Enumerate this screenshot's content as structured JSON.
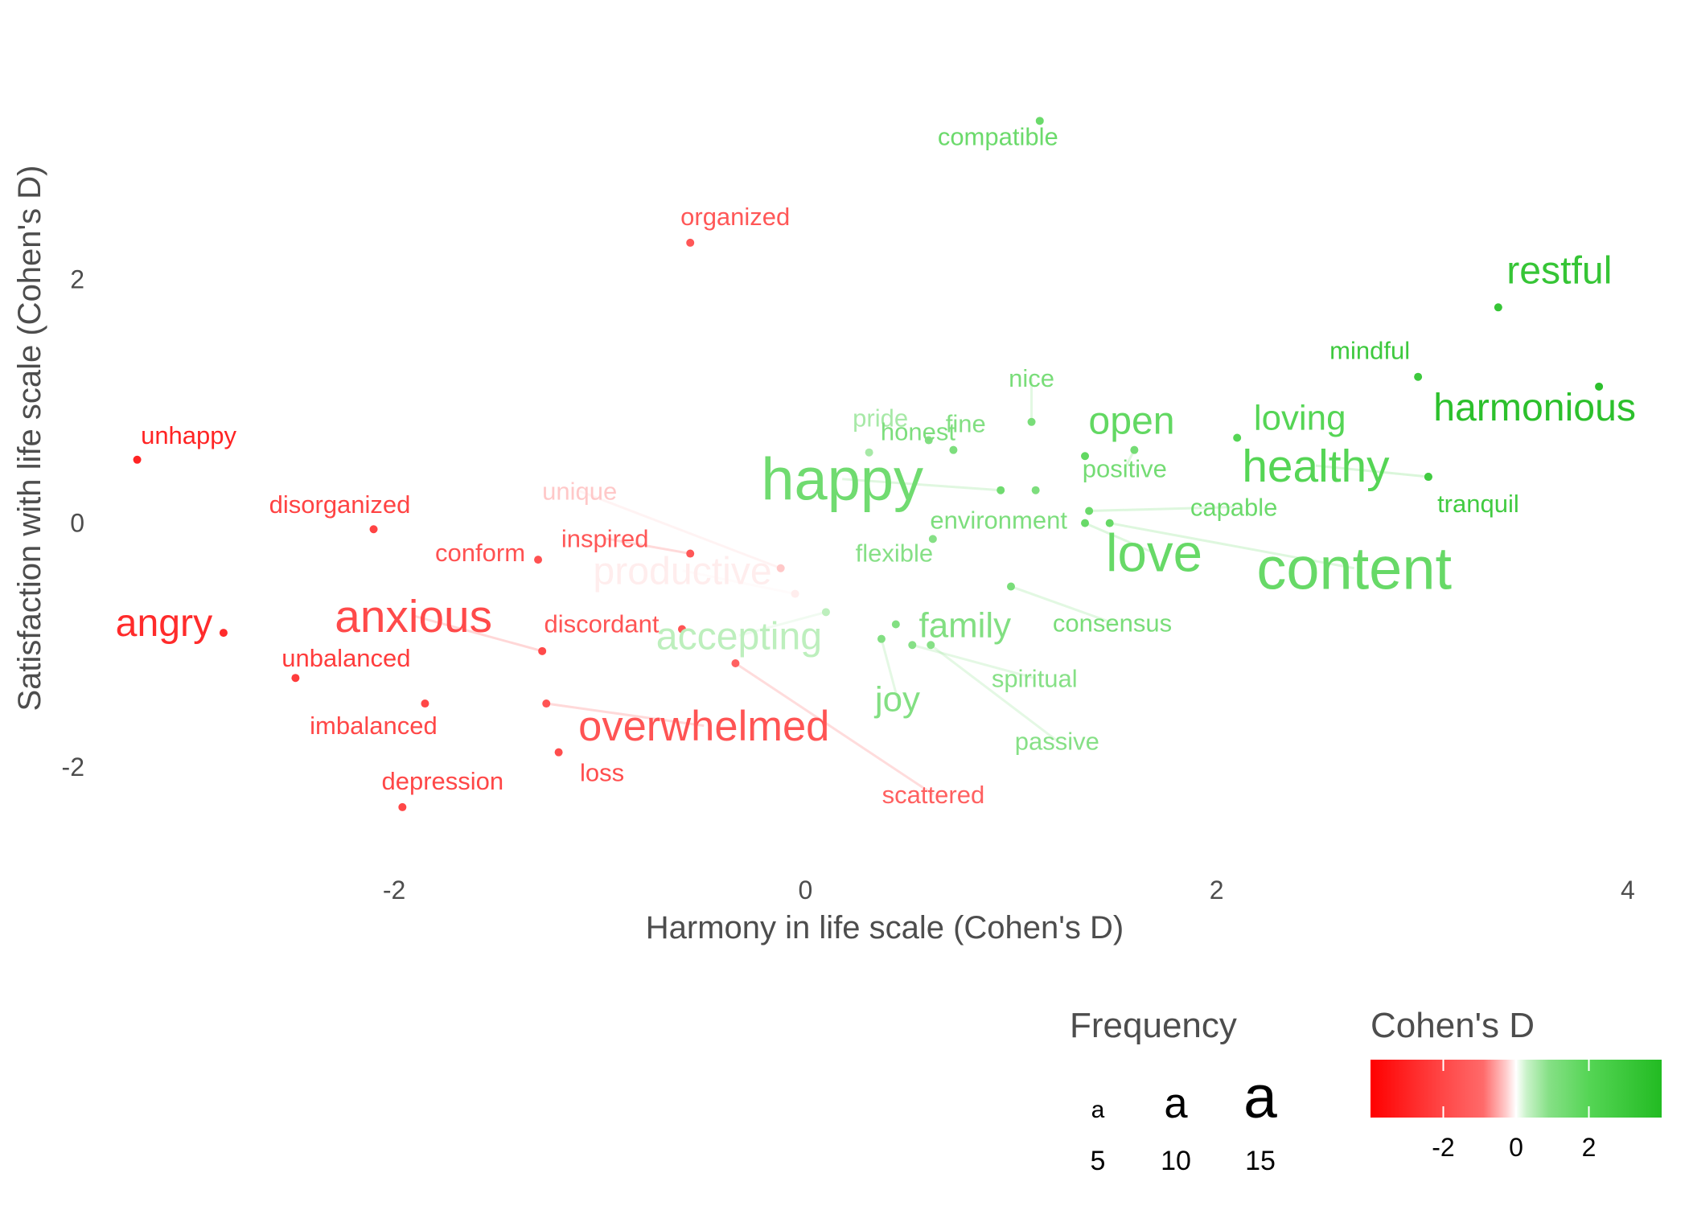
{
  "chart_data": {
    "type": "scatter",
    "xlabel": "Harmony in life scale (Cohen's D)",
    "ylabel": "Satisfaction with life scale (Cohen's D)",
    "xlim": [
      -3.35,
      4.2
    ],
    "ylim": [
      -2.7,
      3.5
    ],
    "x_ticks": [
      "-2",
      "0",
      "2",
      "4"
    ],
    "x_tick_values": [
      -2,
      0,
      2,
      4
    ],
    "y_ticks": [
      "-2",
      "0",
      "2"
    ],
    "y_tick_values": [
      -2,
      0,
      2
    ],
    "grid": false,
    "points": [
      {
        "word": "compatible",
        "x": 1.14,
        "y": 3.3,
        "freq": 5,
        "cohens_d": 1.5
      },
      {
        "word": "organized",
        "x": -0.56,
        "y": 2.3,
        "freq": 5,
        "cohens_d": -1.5
      },
      {
        "word": "restful",
        "x": 3.37,
        "y": 1.77,
        "freq": 9,
        "cohens_d": 3.2
      },
      {
        "word": "mindful",
        "x": 2.98,
        "y": 1.2,
        "freq": 5,
        "cohens_d": 2.9
      },
      {
        "word": "harmonious",
        "x": 3.86,
        "y": 1.12,
        "freq": 9,
        "cohens_d": 3.6
      },
      {
        "word": "nice",
        "x": 1.1,
        "y": 0.83,
        "freq": 5,
        "cohens_d": 1.2
      },
      {
        "word": "loving",
        "x": 2.1,
        "y": 0.7,
        "freq": 8,
        "cohens_d": 2.0
      },
      {
        "word": "open",
        "x": 1.36,
        "y": 0.55,
        "freq": 9,
        "cohens_d": 1.7
      },
      {
        "word": "pride",
        "x": 0.31,
        "y": 0.58,
        "freq": 5,
        "cohens_d": 0.6
      },
      {
        "word": "fine",
        "x": 0.6,
        "y": 0.68,
        "freq": 5,
        "cohens_d": 1.0
      },
      {
        "word": "honest",
        "x": 0.72,
        "y": 0.6,
        "freq": 5,
        "cohens_d": 1.1
      },
      {
        "word": "positive",
        "x": 1.6,
        "y": 0.6,
        "freq": 5,
        "cohens_d": 1.3
      },
      {
        "word": "healthy",
        "x": 3.03,
        "y": 0.38,
        "freq": 11,
        "cohens_d": 2.0
      },
      {
        "word": "tranquil",
        "x": 3.03,
        "y": 0.38,
        "freq": 5,
        "cohens_d": 2.8
      },
      {
        "word": "happy",
        "x": 0.95,
        "y": 0.27,
        "freq": 15,
        "cohens_d": 1.4
      },
      {
        "word": "environment",
        "x": 1.12,
        "y": 0.27,
        "freq": 5,
        "cohens_d": 1.1
      },
      {
        "word": "capable",
        "x": 1.38,
        "y": 0.1,
        "freq": 5,
        "cohens_d": 1.5
      },
      {
        "word": "content",
        "x": 1.48,
        "y": 0.0,
        "freq": 15,
        "cohens_d": 1.6
      },
      {
        "word": "love",
        "x": 1.36,
        "y": 0.0,
        "freq": 13,
        "cohens_d": 1.6
      },
      {
        "word": "unique",
        "x": -0.12,
        "y": -0.37,
        "freq": 5,
        "cohens_d": -0.3
      },
      {
        "word": "productive",
        "x": -0.05,
        "y": -0.58,
        "freq": 9,
        "cohens_d": -0.1
      },
      {
        "word": "flexible",
        "x": 0.62,
        "y": -0.13,
        "freq": 5,
        "cohens_d": 0.9
      },
      {
        "word": "consensus",
        "x": 1.0,
        "y": -0.52,
        "freq": 5,
        "cohens_d": 1.2
      },
      {
        "word": "family",
        "x": 0.44,
        "y": -0.83,
        "freq": 8,
        "cohens_d": 1.0
      },
      {
        "word": "accepting",
        "x": 0.1,
        "y": -0.73,
        "freq": 9,
        "cohens_d": 0.4
      },
      {
        "word": "spiritual",
        "x": 0.52,
        "y": -1.0,
        "freq": 5,
        "cohens_d": 0.9
      },
      {
        "word": "joy",
        "x": 0.37,
        "y": -0.95,
        "freq": 8,
        "cohens_d": 1.0
      },
      {
        "word": "passive",
        "x": 0.61,
        "y": -1.0,
        "freq": 5,
        "cohens_d": 0.9
      },
      {
        "word": "unhappy",
        "x": -3.25,
        "y": 0.52,
        "freq": 5,
        "cohens_d": -3.0
      },
      {
        "word": "disorganized",
        "x": -2.1,
        "y": -0.05,
        "freq": 5,
        "cohens_d": -2.1
      },
      {
        "word": "conform",
        "x": -1.3,
        "y": -0.3,
        "freq": 5,
        "cohens_d": -1.7
      },
      {
        "word": "inspired",
        "x": -0.56,
        "y": -0.25,
        "freq": 5,
        "cohens_d": -1.5
      },
      {
        "word": "angry",
        "x": -2.83,
        "y": -0.9,
        "freq": 9,
        "cohens_d": -2.8
      },
      {
        "word": "anxious",
        "x": -1.28,
        "y": -1.05,
        "freq": 11,
        "cohens_d": -1.9
      },
      {
        "word": "discordant",
        "x": -0.6,
        "y": -0.87,
        "freq": 5,
        "cohens_d": -1.6
      },
      {
        "word": "unbalanced",
        "x": -2.48,
        "y": -1.27,
        "freq": 5,
        "cohens_d": -2.3
      },
      {
        "word": "imbalanced",
        "x": -1.85,
        "y": -1.48,
        "freq": 5,
        "cohens_d": -2.0
      },
      {
        "word": "overwhelmed",
        "x": -1.26,
        "y": -1.48,
        "freq": 10,
        "cohens_d": -1.6
      },
      {
        "word": "scattered",
        "x": -0.34,
        "y": -1.15,
        "freq": 5,
        "cohens_d": -1.2
      },
      {
        "word": "loss",
        "x": -1.2,
        "y": -1.88,
        "freq": 5,
        "cohens_d": -1.8
      },
      {
        "word": "depression",
        "x": -1.96,
        "y": -2.33,
        "freq": 5,
        "cohens_d": -2.0
      }
    ],
    "legend": {
      "frequency_title": "Frequency",
      "frequency_glyph": "a",
      "frequency_values": [
        "5",
        "10",
        "15"
      ],
      "frequency_numbers": [
        5,
        10,
        15
      ],
      "color_title": "Cohen's D",
      "color_ticks": [
        "-2",
        "0",
        "2"
      ],
      "color_tick_values": [
        -2,
        0,
        2
      ],
      "color_range": [
        -4.0,
        4.0
      ],
      "color_stops": [
        {
          "value": -4.0,
          "color": "#ff0000"
        },
        {
          "value": -2.0,
          "color": "#ff4747"
        },
        {
          "value": -0.9,
          "color": "#ff6a6a"
        },
        {
          "value": -0.3,
          "color": "#ffc8c8"
        },
        {
          "value": 0.0,
          "color": "#ffffff"
        },
        {
          "value": 0.3,
          "color": "#c8f2c8"
        },
        {
          "value": 0.9,
          "color": "#86e086"
        },
        {
          "value": 2.0,
          "color": "#55d555"
        },
        {
          "value": 4.0,
          "color": "#22bb22"
        }
      ]
    }
  }
}
